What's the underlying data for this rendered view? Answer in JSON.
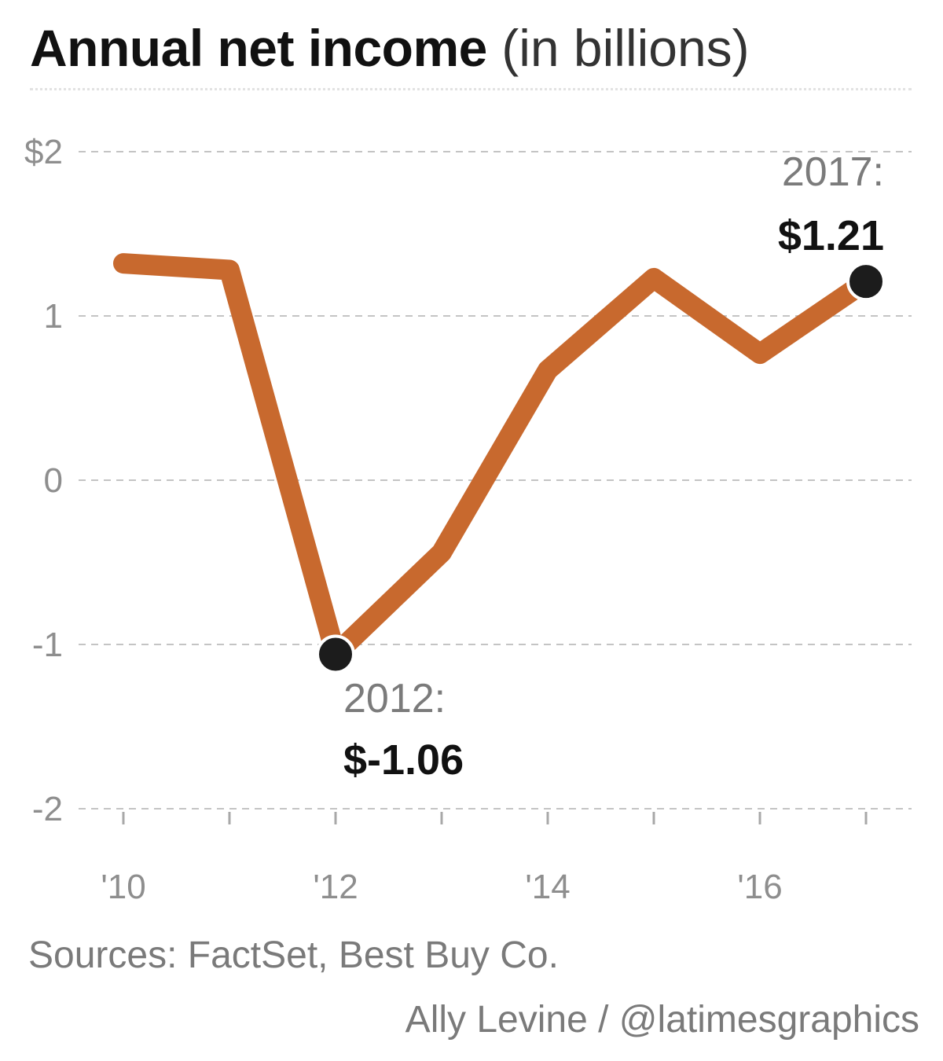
{
  "title": {
    "bold": "Annual net income",
    "light": " (in billions)"
  },
  "chart_data": {
    "type": "line",
    "title": "Annual net income (in billions)",
    "xlabel": "",
    "ylabel": "",
    "x": [
      2010,
      2011,
      2012,
      2013,
      2014,
      2015,
      2016,
      2017
    ],
    "x_tick_values": [
      2010,
      2012,
      2014,
      2016
    ],
    "x_tick_labels": [
      "'10",
      "'12",
      "'14",
      "'16"
    ],
    "y_tick_values": [
      2,
      1,
      0,
      -1,
      -2
    ],
    "y_tick_labels": [
      "$2",
      "1",
      "0",
      "-1",
      "-2"
    ],
    "ylim": [
      -2,
      2
    ],
    "grid": "horizontal dashed",
    "series": [
      {
        "values": [
          1.32,
          1.28,
          -1.06,
          -0.44,
          0.67,
          1.23,
          0.77,
          1.21
        ]
      }
    ],
    "annotations": [
      {
        "x": 2012,
        "year_label": "2012:",
        "value_label": "$-1.06"
      },
      {
        "x": 2017,
        "year_label": "2017:",
        "value_label": "$1.21"
      }
    ],
    "colors": {
      "line": "#c8692e",
      "marker": "#1c1c1c",
      "grid": "#c4c4c4",
      "tick_text": "#8e8e8e"
    }
  },
  "footer": {
    "source": "Sources: FactSet, Best Buy Co.",
    "credit": "Ally Levine / @latimesgraphics"
  }
}
